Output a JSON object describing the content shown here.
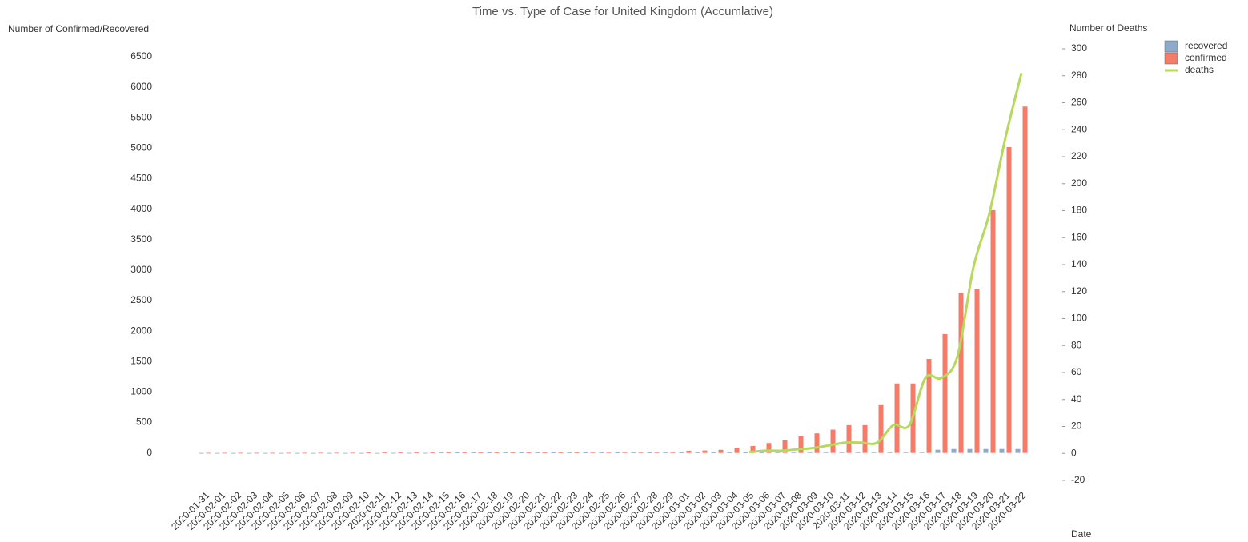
{
  "chart_data": {
    "type": "bar-line",
    "title": "Time vs. Type of Case for United Kingdom (Accumlative)",
    "y_label": "Number of Confirmed/Recovered",
    "y2_label": "Number of Deaths",
    "x_label": "Date",
    "categories": [
      "2020-01-31",
      "2020-02-01",
      "2020-02-02",
      "2020-02-03",
      "2020-02-04",
      "2020-02-05",
      "2020-02-06",
      "2020-02-07",
      "2020-02-08",
      "2020-02-09",
      "2020-02-10",
      "2020-02-11",
      "2020-02-12",
      "2020-02-13",
      "2020-02-14",
      "2020-02-15",
      "2020-02-16",
      "2020-02-17",
      "2020-02-18",
      "2020-02-19",
      "2020-02-20",
      "2020-02-21",
      "2020-02-22",
      "2020-02-23",
      "2020-02-24",
      "2020-02-25",
      "2020-02-26",
      "2020-02-27",
      "2020-02-28",
      "2020-02-29",
      "2020-03-01",
      "2020-03-02",
      "2020-03-03",
      "2020-03-04",
      "2020-03-05",
      "2020-03-06",
      "2020-03-07",
      "2020-03-08",
      "2020-03-09",
      "2020-03-10",
      "2020-03-11",
      "2020-03-12",
      "2020-03-13",
      "2020-03-14",
      "2020-03-15",
      "2020-03-16",
      "2020-03-17",
      "2020-03-18",
      "2020-03-19",
      "2020-03-20",
      "2020-03-21",
      "2020-03-22"
    ],
    "series": [
      {
        "name": "recovered",
        "type": "bar",
        "color": "#8eaacb",
        "values": [
          0,
          0,
          0,
          0,
          0,
          0,
          0,
          0,
          0,
          0,
          0,
          0,
          1,
          1,
          1,
          8,
          8,
          8,
          8,
          8,
          8,
          8,
          8,
          8,
          8,
          8,
          8,
          8,
          8,
          8,
          8,
          8,
          8,
          8,
          8,
          8,
          18,
          18,
          18,
          18,
          18,
          19,
          19,
          19,
          19,
          20,
          52,
          65,
          65,
          65,
          65,
          65
        ]
      },
      {
        "name": "confirmed",
        "type": "bar",
        "color": "#f47c6b",
        "values": [
          2,
          2,
          2,
          2,
          2,
          2,
          2,
          3,
          3,
          3,
          8,
          8,
          9,
          9,
          9,
          9,
          9,
          9,
          9,
          9,
          9,
          9,
          9,
          9,
          13,
          13,
          13,
          15,
          20,
          23,
          36,
          40,
          51,
          85,
          115,
          163,
          206,
          273,
          321,
          382,
          456,
          456,
          798,
          1140,
          1140,
          1543,
          1950,
          2626,
          2689,
          3983,
          5018,
          5683
        ]
      },
      {
        "name": "deaths",
        "type": "line",
        "axis": "y2",
        "color": "#b5d95a",
        "values": [
          null,
          null,
          null,
          null,
          null,
          null,
          null,
          null,
          null,
          null,
          null,
          null,
          null,
          null,
          null,
          null,
          null,
          null,
          null,
          null,
          null,
          null,
          null,
          null,
          null,
          null,
          null,
          null,
          null,
          null,
          null,
          null,
          null,
          null,
          1,
          2,
          2,
          3,
          4,
          6,
          8,
          8,
          8,
          21,
          21,
          56,
          56,
          72,
          138,
          178,
          234,
          282
        ]
      }
    ],
    "ylim": [
      -450,
      6630
    ],
    "yticks": [
      0,
      500,
      1000,
      1500,
      2000,
      2500,
      3000,
      3500,
      4000,
      4500,
      5000,
      5500,
      6000,
      6500
    ],
    "y2lim": [
      -20,
      300
    ],
    "y2ticks": [
      -20,
      0,
      20,
      40,
      60,
      80,
      100,
      120,
      140,
      160,
      180,
      200,
      220,
      240,
      260,
      280,
      300
    ],
    "legend": "top-right"
  }
}
